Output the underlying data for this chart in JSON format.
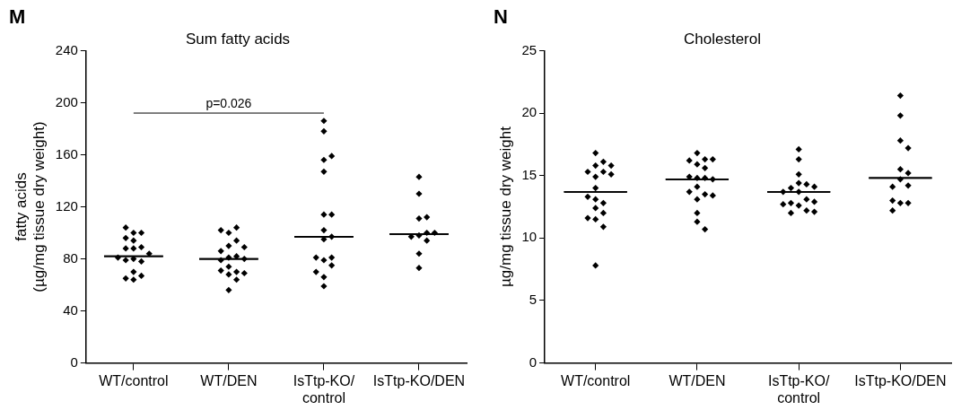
{
  "chart_data": [
    {
      "type": "scatter",
      "title": "Sum fatty acids",
      "ylabel": "fatty acids (µg/mg tissue dry weight)",
      "annotations": [
        "M",
        "p=0.026"
      ],
      "categories": [
        "WT/control",
        "WT/DEN",
        "IsTtp-KO/control",
        "IsTtp-KO/DEN"
      ],
      "ylim": [
        0,
        240
      ],
      "yticks": [
        0,
        40,
        80,
        120,
        160,
        200,
        240
      ],
      "grid": false,
      "legend": false,
      "series": [
        {
          "color": "#000000",
          "marker": "diamond",
          "x": [
            "WT/control",
            "WT/control",
            "WT/control",
            "WT/control",
            "WT/control",
            "WT/control",
            "WT/control",
            "WT/control",
            "WT/control",
            "WT/control",
            "WT/control",
            "WT/control",
            "WT/control",
            "WT/control",
            "WT/control",
            "WT/control",
            "WT/control",
            "WT/DEN",
            "WT/DEN",
            "WT/DEN",
            "WT/DEN",
            "WT/DEN",
            "WT/DEN",
            "WT/DEN",
            "WT/DEN",
            "WT/DEN",
            "WT/DEN",
            "WT/DEN",
            "WT/DEN",
            "WT/DEN",
            "WT/DEN",
            "WT/DEN",
            "WT/DEN",
            "WT/DEN",
            "WT/DEN",
            "IsTtp-KO/control",
            "IsTtp-KO/control",
            "IsTtp-KO/control",
            "IsTtp-KO/control",
            "IsTtp-KO/control",
            "IsTtp-KO/control",
            "IsTtp-KO/control",
            "IsTtp-KO/control",
            "IsTtp-KO/control",
            "IsTtp-KO/control",
            "IsTtp-KO/control",
            "IsTtp-KO/control",
            "IsTtp-KO/control",
            "IsTtp-KO/control",
            "IsTtp-KO/control",
            "IsTtp-KO/control",
            "IsTtp-KO/control",
            "IsTtp-KO/DEN",
            "IsTtp-KO/DEN",
            "IsTtp-KO/DEN",
            "IsTtp-KO/DEN",
            "IsTtp-KO/DEN",
            "IsTtp-KO/DEN",
            "IsTtp-KO/DEN",
            "IsTtp-KO/DEN",
            "IsTtp-KO/DEN",
            "IsTtp-KO/DEN",
            "IsTtp-KO/DEN"
          ],
          "values": [
            88,
            94,
            64,
            80,
            89,
            78,
            100,
            100,
            104,
            67,
            88,
            70,
            84,
            79,
            96,
            65,
            81,
            100,
            74,
            70,
            81,
            82,
            79,
            86,
            104,
            68,
            56,
            102,
            90,
            64,
            94,
            71,
            89,
            69,
            80,
            79,
            114,
            147,
            66,
            81,
            59,
            102,
            156,
            178,
            186,
            81,
            75,
            114,
            159,
            95,
            70,
            97,
            143,
            130,
            111,
            112,
            98,
            100,
            94,
            97,
            100,
            84,
            73
          ]
        },
        {
          "type": "box",
          "color": "#000000",
          "boxes": [
            {
              "low": 82,
              "q1": 82,
              "median": 82,
              "q3": 82,
              "high": 82
            },
            {
              "low": 80,
              "q1": 80,
              "median": 80,
              "q3": 80,
              "high": 80
            },
            {
              "low": 97,
              "q1": 97,
              "median": 97,
              "q3": 97,
              "high": 97
            },
            {
              "low": 99,
              "q1": 99,
              "median": 99,
              "q3": 99,
              "high": 99
            }
          ]
        }
      ]
    },
    {
      "type": "scatter",
      "title": "Cholesterol",
      "ylabel": "µg/mg tissue dry weight",
      "annotations": [
        "N"
      ],
      "categories": [
        "WT/control",
        "WT/DEN",
        "IsTtp-KO/control",
        "IsTtp-KO/DEN"
      ],
      "ylim": [
        0,
        25
      ],
      "yticks": [
        0,
        5,
        10,
        15,
        20,
        25
      ],
      "grid": false,
      "legend": false,
      "series": [
        {
          "color": "#000000",
          "marker": "diamond",
          "x": [
            "WT/control",
            "WT/control",
            "WT/control",
            "WT/control",
            "WT/control",
            "WT/control",
            "WT/control",
            "WT/control",
            "WT/control",
            "WT/control",
            "WT/control",
            "WT/control",
            "WT/control",
            "WT/control",
            "WT/control",
            "WT/control",
            "WT/control",
            "WT/control",
            "WT/DEN",
            "WT/DEN",
            "WT/DEN",
            "WT/DEN",
            "WT/DEN",
            "WT/DEN",
            "WT/DEN",
            "WT/DEN",
            "WT/DEN",
            "WT/DEN",
            "WT/DEN",
            "WT/DEN",
            "WT/DEN",
            "WT/DEN",
            "WT/DEN",
            "WT/DEN",
            "WT/DEN",
            "WT/DEN",
            "IsTtp-KO/control",
            "IsTtp-KO/control",
            "IsTtp-KO/control",
            "IsTtp-KO/control",
            "IsTtp-KO/control",
            "IsTtp-KO/control",
            "IsTtp-KO/control",
            "IsTtp-KO/control",
            "IsTtp-KO/control",
            "IsTtp-KO/control",
            "IsTtp-KO/control",
            "IsTtp-KO/control",
            "IsTtp-KO/control",
            "IsTtp-KO/control",
            "IsTtp-KO/control",
            "IsTtp-KO/control",
            "IsTtp-KO/control",
            "IsTtp-KO/DEN",
            "IsTtp-KO/DEN",
            "IsTtp-KO/DEN",
            "IsTtp-KO/DEN",
            "IsTtp-KO/DEN",
            "IsTtp-KO/DEN",
            "IsTtp-KO/DEN",
            "IsTtp-KO/DEN",
            "IsTtp-KO/DEN",
            "IsTtp-KO/DEN",
            "IsTtp-KO/DEN",
            "IsTtp-KO/DEN",
            "IsTtp-KO/DEN"
          ],
          "values": [
            15.8,
            15.3,
            16.8,
            14.9,
            15.3,
            16.1,
            15.1,
            15.8,
            14,
            13.1,
            12.8,
            13.3,
            12.4,
            12,
            11.5,
            11.6,
            10.9,
            7.8,
            15.9,
            16.3,
            16.8,
            16.2,
            16.3,
            15.6,
            14.8,
            14.8,
            14.9,
            14.7,
            14.1,
            13.5,
            13.7,
            13.1,
            13.4,
            12,
            11.3,
            10.7,
            13.7,
            17.1,
            16.3,
            14.3,
            14.4,
            15.1,
            14,
            14.1,
            13.7,
            13.1,
            12.6,
            12.2,
            12.8,
            12.9,
            12.7,
            12,
            12.1,
            21.4,
            19.8,
            17.8,
            17.2,
            15.5,
            15.2,
            14.7,
            14.2,
            14.1,
            12.8,
            12.8,
            13,
            12.2
          ]
        },
        {
          "type": "box",
          "color": "#000000",
          "boxes": [
            {
              "low": 13.7,
              "q1": 13.7,
              "median": 13.7,
              "q3": 13.7,
              "high": 13.7
            },
            {
              "low": 14.7,
              "q1": 14.7,
              "median": 14.7,
              "q3": 14.7,
              "high": 14.7
            },
            {
              "low": 13.7,
              "q1": 13.7,
              "median": 13.7,
              "q3": 13.7,
              "high": 13.7
            },
            {
              "low": 14.8,
              "q1": 14.8,
              "median": 14.8,
              "q3": 14.8,
              "high": 14.8
            }
          ]
        }
      ]
    }
  ]
}
